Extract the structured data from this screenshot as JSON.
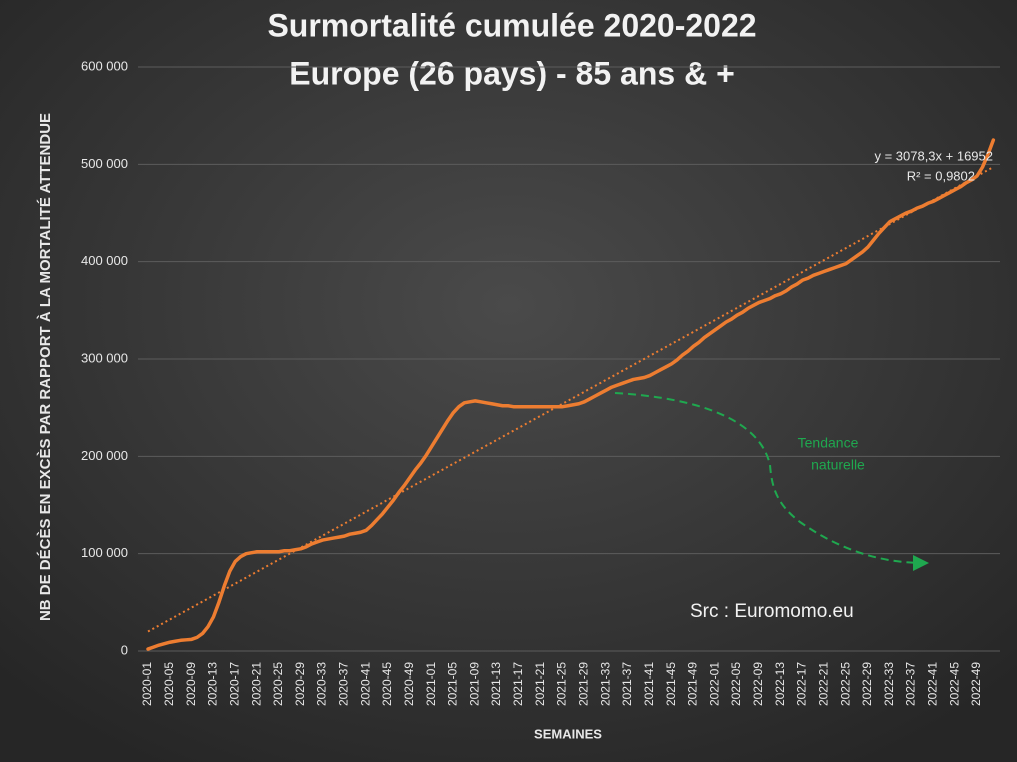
{
  "chart_data": {
    "type": "line",
    "title": "Surmortalité cumulée 2020-2022",
    "subtitle": "Europe (26 pays) - 85 ans & +",
    "y_label": "NB DE DÉCÈS EN EXCÈS PAR RAPPORT À LA MORTALITÉ ATTENDUE",
    "x_label": "SEMAINES",
    "annotation": "Tendance",
    "annotation2": "naturelle",
    "source": "Src : Euromomo.eu",
    "trendline": {
      "label": "y = 3078,3x + 16952",
      "r2_label": "R² = 0,9802",
      "slope": 3078.3,
      "intercept": 16952,
      "color": "#ed7d31"
    },
    "ylim": [
      0,
      600000
    ],
    "yticks": [
      0,
      {
        "value": 100000,
        "label": "100 000"
      },
      {
        "value": 200000,
        "label": "200 000"
      },
      {
        "value": 300000,
        "label": "300 000"
      },
      {
        "value": 400000,
        "label": "400 000"
      },
      {
        "value": 500000,
        "label": "500 000"
      },
      {
        "value": 600000,
        "label": "600 000"
      }
    ],
    "grid": true,
    "color": "#ed7d31",
    "categories": [
      "2020-01",
      null,
      null,
      null,
      "2020-05",
      null,
      null,
      null,
      "2020-09",
      null,
      null,
      null,
      "2020-13",
      null,
      null,
      null,
      "2020-17",
      null,
      null,
      null,
      "2020-21",
      null,
      null,
      null,
      "2020-25",
      null,
      null,
      null,
      "2020-29",
      null,
      null,
      null,
      "2020-33",
      null,
      null,
      null,
      "2020-37",
      null,
      null,
      null,
      "2020-41",
      null,
      null,
      null,
      "2020-45",
      null,
      null,
      null,
      "2020-49",
      null,
      null,
      null,
      "2021-01",
      null,
      null,
      null,
      "2021-05",
      null,
      null,
      null,
      "2021-09",
      null,
      null,
      null,
      "2021-13",
      null,
      null,
      null,
      "2021-17",
      null,
      null,
      null,
      "2021-21",
      null,
      null,
      null,
      "2021-25",
      null,
      null,
      null,
      "2021-29",
      null,
      null,
      null,
      "2021-33",
      null,
      null,
      null,
      "2021-37",
      null,
      null,
      null,
      "2021-41",
      null,
      null,
      null,
      "2021-45",
      null,
      null,
      null,
      "2021-49",
      null,
      null,
      null,
      "2022-01",
      null,
      null,
      null,
      "2022-05",
      null,
      null,
      null,
      "2022-09",
      null,
      null,
      null,
      "2022-13",
      null,
      null,
      null,
      "2022-17",
      null,
      null,
      null,
      "2022-21",
      null,
      null,
      null,
      "2022-25",
      null,
      null,
      null,
      "2022-29",
      null,
      null,
      null,
      "2022-33",
      null,
      null,
      null,
      "2022-37",
      null,
      null,
      null,
      "2022-41",
      null,
      null,
      null,
      "2022-45",
      null,
      null,
      null,
      "2022-49",
      null,
      null,
      null
    ],
    "values": [
      2000,
      4000,
      6000,
      7500,
      9000,
      10000,
      11000,
      11500,
      12000,
      14000,
      18000,
      25000,
      35000,
      50000,
      67000,
      82000,
      92000,
      97000,
      100000,
      101000,
      102000,
      102000,
      102000,
      102000,
      102000,
      103000,
      103000,
      104000,
      105000,
      107000,
      110000,
      112000,
      114000,
      115000,
      116000,
      117000,
      118000,
      120000,
      121000,
      122000,
      124000,
      129000,
      135000,
      141000,
      148000,
      155000,
      163000,
      170000,
      178000,
      186000,
      193000,
      201000,
      210000,
      219000,
      228000,
      237000,
      245000,
      251000,
      255000,
      256000,
      257000,
      256000,
      255000,
      254000,
      253000,
      252000,
      252000,
      251000,
      251000,
      251000,
      251000,
      251000,
      251000,
      251000,
      251000,
      251000,
      251000,
      252000,
      253000,
      254000,
      256000,
      259000,
      262000,
      265000,
      268000,
      271000,
      273000,
      275000,
      277000,
      279000,
      280000,
      281000,
      283000,
      286000,
      289000,
      292000,
      295000,
      299000,
      304000,
      308000,
      313000,
      317000,
      322000,
      326000,
      330000,
      334000,
      338000,
      341000,
      345000,
      348000,
      352000,
      355000,
      358000,
      360000,
      362000,
      365000,
      367000,
      370000,
      374000,
      377000,
      381000,
      383000,
      386000,
      388000,
      390000,
      392000,
      394000,
      396000,
      398000,
      402000,
      406000,
      410000,
      415000,
      422000,
      429000,
      435000,
      441000,
      444000,
      447000,
      450000,
      452000,
      455000,
      457000,
      460000,
      462000,
      465000,
      468000,
      471000,
      474000,
      477000,
      481000,
      484000,
      488000,
      497000,
      510000,
      525000
    ]
  }
}
